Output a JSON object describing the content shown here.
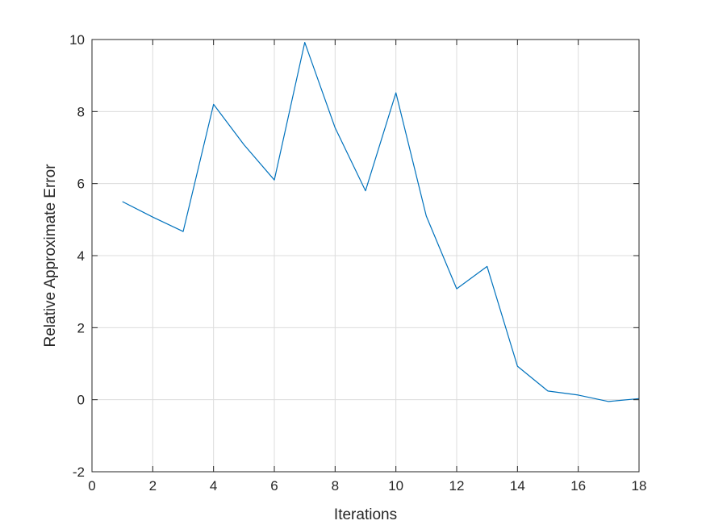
{
  "chart_data": {
    "type": "line",
    "title": "",
    "xlabel": "Iterations",
    "ylabel": "Relative Approximate Error",
    "xlim": [
      0,
      18
    ],
    "ylim": [
      -2,
      10
    ],
    "xticks": [
      0,
      2,
      4,
      6,
      8,
      10,
      12,
      14,
      16,
      18
    ],
    "yticks": [
      -2,
      0,
      2,
      4,
      6,
      8,
      10
    ],
    "grid": true,
    "legend": "none",
    "series": [
      {
        "color": "#0072BD",
        "x": [
          1,
          2,
          3,
          4,
          5,
          6,
          7,
          8,
          9,
          10,
          11,
          12,
          13,
          14,
          15,
          16,
          17,
          18
        ],
        "y": [
          5.5,
          5.07,
          4.67,
          8.2,
          7.08,
          6.1,
          9.92,
          7.55,
          5.8,
          8.52,
          5.1,
          3.08,
          3.7,
          0.93,
          0.24,
          0.13,
          -0.05,
          0.03
        ]
      }
    ],
    "colors": {
      "line": "#0072BD",
      "axis": "#262626",
      "grid": "#dcdcdc"
    }
  }
}
